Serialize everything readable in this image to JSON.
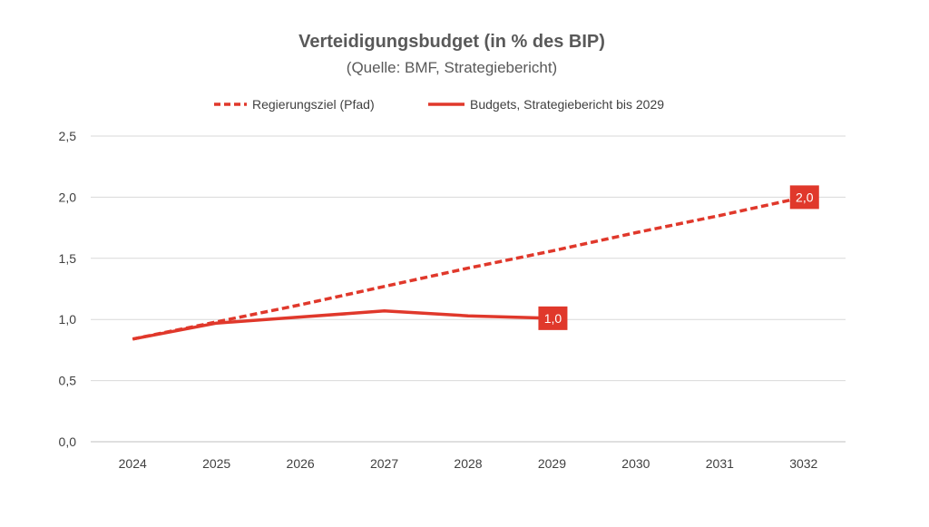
{
  "chart_data": {
    "type": "line",
    "title": "Verteidigungsbudget (in % des BIP)",
    "subtitle": "(Quelle: BMF, Strategiebericht)",
    "categories": [
      "2024",
      "2025",
      "2026",
      "2027",
      "2028",
      "2029",
      "2030",
      "2031",
      "3032"
    ],
    "y_ticks": [
      "0,0",
      "0,5",
      "1,0",
      "1,5",
      "2,0",
      "2,5"
    ],
    "ylim": [
      0,
      2.5
    ],
    "grid": true,
    "legend_position": "top",
    "series": [
      {
        "name": "Regierungsziel (Pfad)",
        "style": "dashed",
        "color": "#E0382B",
        "values": [
          0.84,
          0.98,
          1.12,
          1.27,
          1.42,
          1.56,
          1.71,
          1.85,
          2.0
        ],
        "data_label": {
          "index": 8,
          "text": "2,0"
        }
      },
      {
        "name": "Budgets, Strategiebericht bis 2029",
        "style": "solid",
        "color": "#E0382B",
        "values": [
          0.84,
          0.97,
          1.02,
          1.07,
          1.03,
          1.01,
          null,
          null,
          null
        ],
        "data_label": {
          "index": 5,
          "text": "1,0"
        }
      }
    ]
  }
}
